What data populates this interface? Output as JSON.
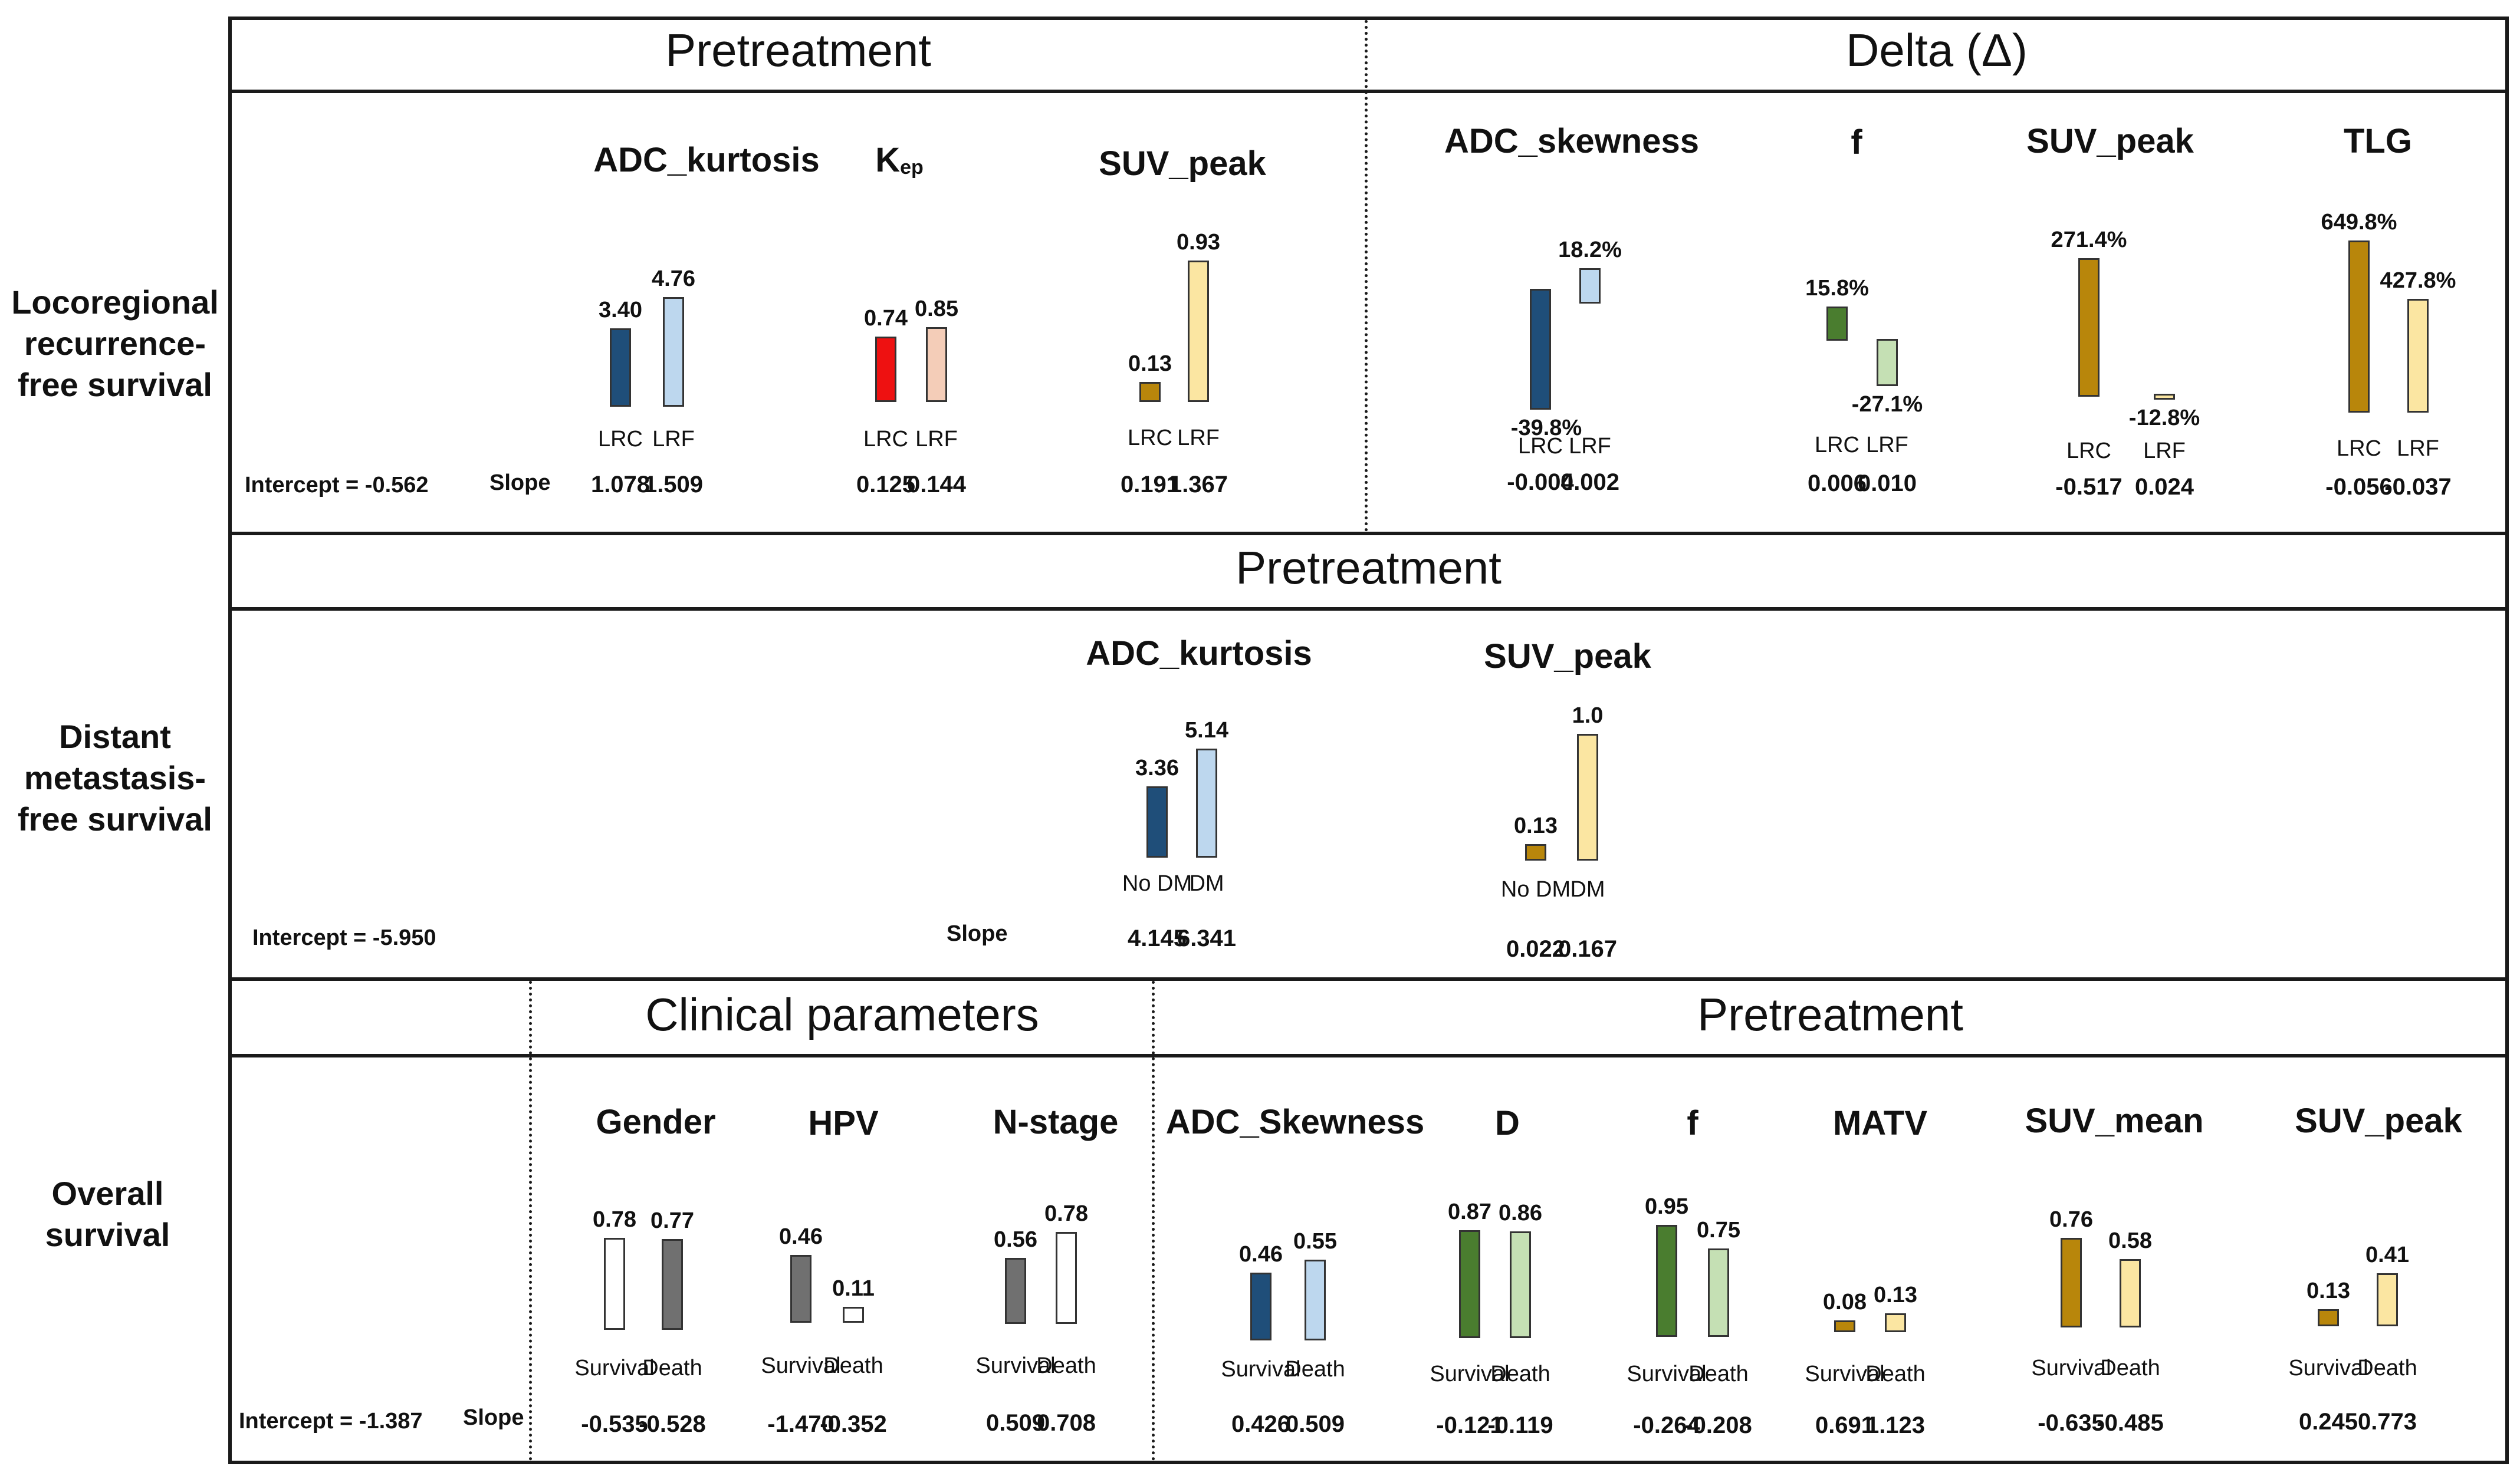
{
  "row_labels": {
    "lrfs": "Locoregional recurrence-free survival",
    "dmfs": "Distant metastasis-free survival",
    "os": "Overall survival"
  },
  "headers": {
    "r1_left": "Pretreatment",
    "r1_right": "Delta (Δ)",
    "r2": "Pretreatment",
    "r3_left": "Clinical parameters",
    "r3_right": "Pretreatment"
  },
  "intercepts": {
    "lrfs": "Intercept = -0.562",
    "dmfs": "Intercept = -5.950",
    "os": "Intercept = -1.387"
  },
  "slope_label": "Slope",
  "colors": {
    "navy": "#1f4e79",
    "lightblue": "#bdd7ee",
    "red": "#ee1111",
    "peach": "#f4cdb8",
    "gold": "#b8860b",
    "lightyellow": "#fbe6a2",
    "green": "#4a7d2f",
    "lightgreen": "#c5e0b4",
    "gray": "#707070",
    "white": "#ffffff"
  },
  "chart_data": [
    {
      "type": "bar",
      "row": "Locoregional recurrence-free survival",
      "section": "Pretreatment",
      "title": "ADC_kurtosis",
      "categories": [
        "LRC",
        "LRF"
      ],
      "values": [
        3.4,
        4.76
      ],
      "value_labels": [
        "3.40",
        "4.76"
      ],
      "slopes": [
        "1.078",
        "1.509"
      ],
      "colors": [
        "navy",
        "lightblue"
      ]
    },
    {
      "type": "bar",
      "row": "Locoregional recurrence-free survival",
      "section": "Pretreatment",
      "title": "Kep",
      "categories": [
        "LRC",
        "LRF"
      ],
      "values": [
        0.74,
        0.85
      ],
      "value_labels": [
        "0.74",
        "0.85"
      ],
      "slopes": [
        "0.125",
        "0.144"
      ],
      "colors": [
        "red",
        "peach"
      ]
    },
    {
      "type": "bar",
      "row": "Locoregional recurrence-free survival",
      "section": "Pretreatment",
      "title": "SUV_peak",
      "categories": [
        "LRC",
        "LRF"
      ],
      "values": [
        0.13,
        0.93
      ],
      "value_labels": [
        "0.13",
        "0.93"
      ],
      "slopes": [
        "0.191",
        "1.367"
      ],
      "colors": [
        "gold",
        "lightyellow"
      ]
    },
    {
      "type": "bar",
      "row": "Locoregional recurrence-free survival",
      "section": "Delta",
      "title": "ADC_skewness",
      "categories": [
        "LRC",
        "LRF"
      ],
      "values": [
        -39.8,
        18.2
      ],
      "value_labels": [
        "-39.8%",
        "18.2%"
      ],
      "slopes": [
        "-0.004",
        "0.002"
      ],
      "colors": [
        "navy",
        "lightblue"
      ]
    },
    {
      "type": "bar",
      "row": "Locoregional recurrence-free survival",
      "section": "Delta",
      "title": "f",
      "categories": [
        "LRC",
        "LRF"
      ],
      "values": [
        15.8,
        -27.1
      ],
      "value_labels": [
        "15.8%",
        "-27.1%"
      ],
      "slopes": [
        "0.006",
        "0.010"
      ],
      "colors": [
        "green",
        "lightgreen"
      ]
    },
    {
      "type": "bar",
      "row": "Locoregional recurrence-free survival",
      "section": "Delta",
      "title": "SUV_peak",
      "categories": [
        "LRC",
        "LRF"
      ],
      "values": [
        271.4,
        -12.8
      ],
      "value_labels": [
        "271.4%",
        "-12.8%"
      ],
      "slopes": [
        "-0.517",
        "0.024"
      ],
      "colors": [
        "gold",
        "lightyellow"
      ]
    },
    {
      "type": "bar",
      "row": "Locoregional recurrence-free survival",
      "section": "Delta",
      "title": "TLG",
      "categories": [
        "LRC",
        "LRF"
      ],
      "values": [
        649.8,
        427.8
      ],
      "value_labels": [
        "649.8%",
        "427.8%"
      ],
      "slopes": [
        "-0.056",
        "-0.037"
      ],
      "colors": [
        "gold",
        "lightyellow"
      ]
    },
    {
      "type": "bar",
      "row": "Distant metastasis-free survival",
      "section": "Pretreatment",
      "title": "ADC_kurtosis",
      "categories": [
        "No DM",
        "DM"
      ],
      "values": [
        3.36,
        5.14
      ],
      "value_labels": [
        "3.36",
        "5.14"
      ],
      "slopes": [
        "4.145",
        "6.341"
      ],
      "colors": [
        "navy",
        "lightblue"
      ]
    },
    {
      "type": "bar",
      "row": "Distant metastasis-free survival",
      "section": "Pretreatment",
      "title": "SUV_peak",
      "categories": [
        "No DM",
        "DM"
      ],
      "values": [
        0.13,
        1.0
      ],
      "value_labels": [
        "0.13",
        "1.0"
      ],
      "slopes": [
        "0.022",
        "0.167"
      ],
      "colors": [
        "gold",
        "lightyellow"
      ]
    },
    {
      "type": "bar",
      "row": "Overall survival",
      "section": "Clinical parameters",
      "title": "Gender",
      "categories": [
        "Survival",
        "Death"
      ],
      "values": [
        0.78,
        0.77
      ],
      "value_labels": [
        "0.78",
        "0.77"
      ],
      "slopes": [
        "-0.535",
        "-0.528"
      ],
      "colors": [
        "white",
        "gray"
      ]
    },
    {
      "type": "bar",
      "row": "Overall survival",
      "section": "Clinical parameters",
      "title": "HPV",
      "categories": [
        "Survival",
        "Death"
      ],
      "values": [
        0.46,
        0.11
      ],
      "value_labels": [
        "0.46",
        "0.11"
      ],
      "slopes": [
        "-1.470",
        "-0.352"
      ],
      "colors": [
        "gray",
        "white"
      ]
    },
    {
      "type": "bar",
      "row": "Overall survival",
      "section": "Clinical parameters",
      "title": "N-stage",
      "categories": [
        "Survival",
        "Death"
      ],
      "values": [
        0.56,
        0.78
      ],
      "value_labels": [
        "0.56",
        "0.78"
      ],
      "slopes": [
        "0.509",
        "0.708"
      ],
      "colors": [
        "gray",
        "white"
      ]
    },
    {
      "type": "bar",
      "row": "Overall survival",
      "section": "Pretreatment",
      "title": "ADC_Skewness",
      "categories": [
        "Survival",
        "Death"
      ],
      "values": [
        0.46,
        0.55
      ],
      "value_labels": [
        "0.46",
        "0.55"
      ],
      "slopes": [
        "0.426",
        "0.509"
      ],
      "colors": [
        "navy",
        "lightblue"
      ]
    },
    {
      "type": "bar",
      "row": "Overall survival",
      "section": "Pretreatment",
      "title": "D",
      "categories": [
        "Survival",
        "Death"
      ],
      "values": [
        0.87,
        0.86
      ],
      "value_labels": [
        "0.87",
        "0.86"
      ],
      "slopes": [
        "-0.121",
        "-0.119"
      ],
      "colors": [
        "green",
        "lightgreen"
      ]
    },
    {
      "type": "bar",
      "row": "Overall survival",
      "section": "Pretreatment",
      "title": "f",
      "categories": [
        "Survival",
        "Death"
      ],
      "values": [
        0.95,
        0.75
      ],
      "value_labels": [
        "0.95",
        "0.75"
      ],
      "slopes": [
        "-0.264",
        "-0.208"
      ],
      "colors": [
        "green",
        "lightgreen"
      ]
    },
    {
      "type": "bar",
      "row": "Overall survival",
      "section": "Pretreatment",
      "title": "MATV",
      "categories": [
        "Survival",
        "Death"
      ],
      "values": [
        0.08,
        0.13
      ],
      "value_labels": [
        "0.08",
        "0.13"
      ],
      "slopes": [
        "0.691",
        "1.123"
      ],
      "colors": [
        "gold",
        "lightyellow"
      ]
    },
    {
      "type": "bar",
      "row": "Overall survival",
      "section": "Pretreatment",
      "title": "SUV_mean",
      "categories": [
        "Survival",
        "Death"
      ],
      "values": [
        0.76,
        0.58
      ],
      "value_labels": [
        "0.76",
        "0.58"
      ],
      "slopes": [
        "-0.635",
        "-0.485"
      ],
      "colors": [
        "gold",
        "lightyellow"
      ]
    },
    {
      "type": "bar",
      "row": "Overall survival",
      "section": "Pretreatment",
      "title": "SUV_peak",
      "categories": [
        "Survival",
        "Death"
      ],
      "values": [
        0.13,
        0.41
      ],
      "value_labels": [
        "0.13",
        "0.41"
      ],
      "slopes": [
        "0.245",
        "0.773"
      ],
      "colors": [
        "gold",
        "lightyellow"
      ]
    }
  ]
}
